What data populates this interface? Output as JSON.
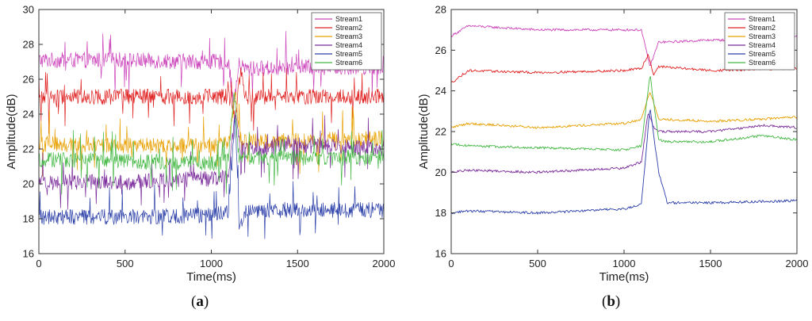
{
  "captions": [
    {
      "open": "(",
      "letter": "a",
      "close": ")"
    },
    {
      "open": "(",
      "letter": "b",
      "close": ")"
    }
  ],
  "chart_data": [
    {
      "type": "line",
      "title": "",
      "xlabel": "Time(ms)",
      "ylabel": "Amplitude(dB)",
      "xlim": [
        0,
        2000
      ],
      "ylim": [
        16,
        30
      ],
      "xticks": [
        0,
        500,
        1000,
        1500,
        2000
      ],
      "yticks": [
        16,
        18,
        20,
        22,
        24,
        26,
        28,
        30
      ],
      "legend_position": "top-right",
      "noise": "high",
      "series": [
        {
          "name": "Stream1",
          "color": "#cc44bb",
          "x": [
            0,
            500,
            1000,
            1100,
            1130,
            1160,
            1200,
            1500,
            2000
          ],
          "values": [
            27.1,
            27.1,
            27.0,
            27.0,
            24.5,
            26.8,
            26.6,
            26.7,
            26.7
          ]
        },
        {
          "name": "Stream2",
          "color": "#e02020",
          "x": [
            0,
            500,
            1000,
            1100,
            1140,
            1170,
            1200,
            1500,
            2000
          ],
          "values": [
            25.0,
            25.0,
            25.0,
            25.0,
            24.0,
            26.5,
            25.0,
            25.0,
            25.0
          ]
        },
        {
          "name": "Stream3",
          "color": "#e8a000",
          "x": [
            0,
            500,
            1000,
            1100,
            1140,
            1170,
            1200,
            1500,
            2000
          ],
          "values": [
            22.3,
            22.2,
            22.2,
            22.3,
            25.0,
            22.6,
            22.4,
            22.5,
            22.6
          ]
        },
        {
          "name": "Stream4",
          "color": "#7a2a9a",
          "x": [
            0,
            500,
            1000,
            1100,
            1140,
            1170,
            1200,
            1500,
            2000
          ],
          "values": [
            20.1,
            20.1,
            20.3,
            20.5,
            24.0,
            22.0,
            22.0,
            22.2,
            22.0
          ]
        },
        {
          "name": "Stream5",
          "color": "#2a3ea8",
          "x": [
            0,
            500,
            1000,
            1100,
            1140,
            1160,
            1200,
            1500,
            2000
          ],
          "values": [
            18.1,
            18.1,
            18.2,
            18.4,
            24.0,
            17.5,
            18.5,
            18.5,
            18.5
          ]
        },
        {
          "name": "Stream6",
          "color": "#44b844",
          "x": [
            0,
            500,
            1000,
            1100,
            1130,
            1160,
            1200,
            1500,
            2000
          ],
          "values": [
            21.4,
            21.3,
            21.2,
            21.3,
            25.5,
            21.5,
            21.4,
            21.5,
            21.5
          ]
        }
      ]
    },
    {
      "type": "line",
      "title": "",
      "xlabel": "Time(ms)",
      "ylabel": "Amplitude(dB)",
      "xlim": [
        0,
        2000
      ],
      "ylim": [
        16,
        28
      ],
      "xticks": [
        0,
        500,
        1000,
        1500,
        2000
      ],
      "yticks": [
        16,
        18,
        20,
        22,
        24,
        26,
        28
      ],
      "legend_position": "top-right",
      "noise": "low",
      "series": [
        {
          "name": "Stream1",
          "color": "#cc44bb",
          "x": [
            0,
            100,
            500,
            1000,
            1100,
            1150,
            1200,
            1250,
            1500,
            1800,
            2000
          ],
          "values": [
            26.7,
            27.2,
            27.0,
            27.0,
            27.0,
            25.2,
            26.4,
            26.4,
            26.5,
            26.5,
            26.7
          ]
        },
        {
          "name": "Stream2",
          "color": "#e02020",
          "x": [
            0,
            100,
            500,
            1000,
            1100,
            1140,
            1170,
            1200,
            1500,
            2000
          ],
          "values": [
            24.4,
            25.0,
            24.9,
            25.0,
            25.1,
            25.8,
            24.8,
            25.2,
            25.0,
            25.1
          ]
        },
        {
          "name": "Stream3",
          "color": "#e8a000",
          "x": [
            0,
            100,
            500,
            1000,
            1100,
            1150,
            1200,
            1250,
            1500,
            2000
          ],
          "values": [
            22.2,
            22.4,
            22.2,
            22.4,
            22.6,
            24.0,
            22.6,
            22.6,
            22.5,
            22.7
          ]
        },
        {
          "name": "Stream4",
          "color": "#7a2a9a",
          "x": [
            0,
            100,
            500,
            1000,
            1100,
            1140,
            1170,
            1200,
            1500,
            1800,
            2000
          ],
          "values": [
            20.0,
            20.1,
            20.0,
            20.2,
            20.5,
            23.0,
            22.2,
            22.0,
            22.0,
            22.3,
            22.2
          ]
        },
        {
          "name": "Stream5",
          "color": "#2a3ea8",
          "x": [
            0,
            100,
            500,
            1000,
            1100,
            1150,
            1200,
            1250,
            1500,
            2000
          ],
          "values": [
            18.0,
            18.1,
            18.0,
            18.2,
            18.4,
            23.2,
            20.0,
            18.5,
            18.5,
            18.6
          ]
        },
        {
          "name": "Stream6",
          "color": "#44b844",
          "x": [
            0,
            100,
            500,
            1000,
            1100,
            1150,
            1200,
            1250,
            1500,
            1800,
            2000
          ],
          "values": [
            21.4,
            21.3,
            21.2,
            21.1,
            21.3,
            24.8,
            21.6,
            21.5,
            21.5,
            21.8,
            21.6
          ]
        }
      ]
    }
  ]
}
